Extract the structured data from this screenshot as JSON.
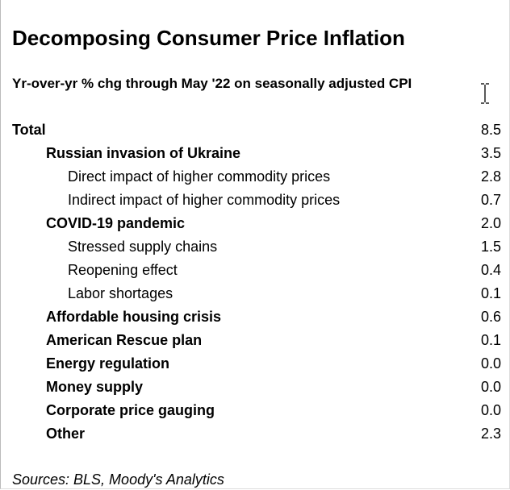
{
  "header": {
    "title": "Decomposing Consumer Price Inflation",
    "subtitle": "Yr-over-yr % chg through May '22 on seasonally adjusted CPI"
  },
  "table": {
    "total": {
      "label": "Total",
      "value": "8.5"
    },
    "rows": [
      {
        "label": "Russian invasion of Ukraine",
        "value": "3.5",
        "children": [
          {
            "label": "Direct impact of higher commodity prices",
            "value": "2.8"
          },
          {
            "label": "Indirect impact of higher commodity prices",
            "value": "0.7"
          }
        ]
      },
      {
        "label": "COVID-19 pandemic",
        "value": "2.0",
        "children": [
          {
            "label": "Stressed supply chains",
            "value": "1.5"
          },
          {
            "label": "Reopening effect",
            "value": "0.4"
          },
          {
            "label": "Labor shortages",
            "value": "0.1"
          }
        ]
      },
      {
        "label": "Affordable housing crisis",
        "value": "0.6"
      },
      {
        "label": "American Rescue plan",
        "value": "0.1"
      },
      {
        "label": "Energy regulation",
        "value": "0.0"
      },
      {
        "label": "Money supply",
        "value": "0.0"
      },
      {
        "label": "Corporate price gauging",
        "value": "0.0"
      },
      {
        "label": "Other",
        "value": "2.3"
      }
    ]
  },
  "footer": {
    "source": "Sources: BLS, Moody's Analytics"
  }
}
